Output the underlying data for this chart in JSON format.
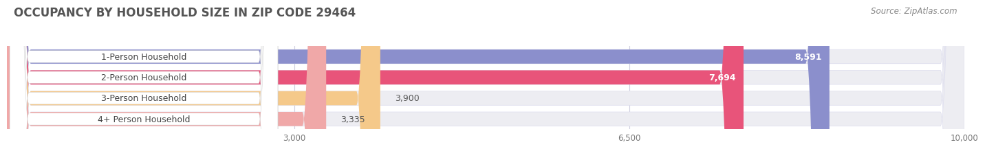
{
  "title": "OCCUPANCY BY HOUSEHOLD SIZE IN ZIP CODE 29464",
  "source": "Source: ZipAtlas.com",
  "categories": [
    "1-Person Household",
    "2-Person Household",
    "3-Person Household",
    "4+ Person Household"
  ],
  "values": [
    8591,
    7694,
    3900,
    3335
  ],
  "bar_colors": [
    "#8b8fcc",
    "#e8547a",
    "#f5c98a",
    "#f0a8a8"
  ],
  "value_inside": [
    true,
    true,
    false,
    false
  ],
  "xlim": [
    0,
    10000
  ],
  "xticks": [
    3000,
    6500,
    10000
  ],
  "xtick_labels": [
    "3,000",
    "6,500",
    "10,000"
  ],
  "background_color": "#ffffff",
  "bar_bg_color": "#ededf2",
  "row_bg_color": "#f5f5f8",
  "title_fontsize": 12,
  "source_fontsize": 8.5,
  "label_fontsize": 9,
  "value_fontsize": 9
}
